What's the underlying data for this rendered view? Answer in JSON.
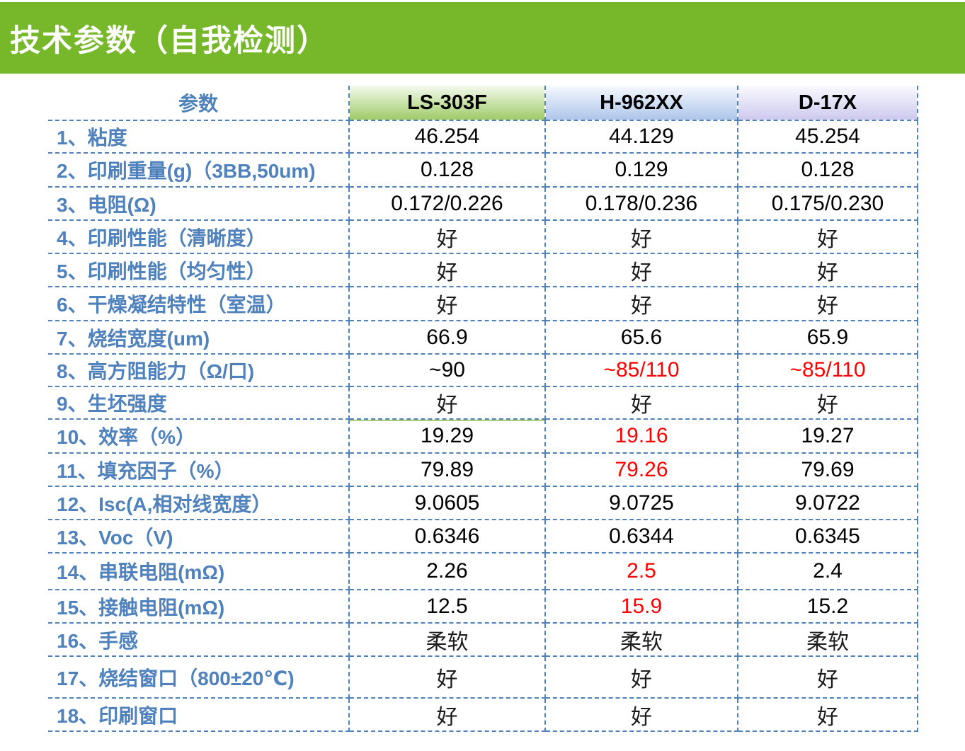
{
  "title": "技术参数（自我检测）",
  "colors": {
    "title_bar": "#77b82a",
    "label_blue": "#4f81bd",
    "border_blue": "#4f81bd",
    "alert_red": "#ff0000",
    "hdr_green_top": "#f4faee",
    "hdr_green_bottom": "#9fcb68",
    "hdr_blue_top": "#f6f9fe",
    "hdr_blue_bottom": "#aec6ea",
    "hdr_purple_top": "#fafaff",
    "hdr_purple_bottom": "#cdc9ee"
  },
  "table": {
    "param_header": "参数",
    "products": [
      "LS-303F",
      "H-962XX",
      "D-17X"
    ],
    "rows": [
      {
        "label": "1、粘度",
        "values": [
          "46.254",
          "44.129",
          "45.254"
        ],
        "red": [
          false,
          false,
          false
        ]
      },
      {
        "label": "2、印刷重量(g)（3BB,50um)",
        "values": [
          "0.128",
          "0.129",
          "0.128"
        ],
        "red": [
          false,
          false,
          false
        ]
      },
      {
        "label": "3、电阻(Ω)",
        "values": [
          "0.172/0.226",
          "0.178/0.236",
          "0.175/0.230"
        ],
        "red": [
          false,
          false,
          false
        ]
      },
      {
        "label": "4、印刷性能（清晰度）",
        "values": [
          "好",
          "好",
          "好"
        ],
        "red": [
          false,
          false,
          false
        ]
      },
      {
        "label": "5、印刷性能（均匀性）",
        "values": [
          "好",
          "好",
          "好"
        ],
        "red": [
          false,
          false,
          false
        ]
      },
      {
        "label": "6、干燥凝结特性（室温）",
        "values": [
          "好",
          "好",
          "好"
        ],
        "red": [
          false,
          false,
          false
        ]
      },
      {
        "label": "7、烧结宽度(um)",
        "values": [
          "66.9",
          "65.6",
          "65.9"
        ],
        "red": [
          false,
          false,
          false
        ]
      },
      {
        "label": "8、高方阻能力（Ω/口)",
        "values": [
          "~90",
          "~85/110",
          "~85/110"
        ],
        "red": [
          false,
          true,
          true
        ]
      },
      {
        "label": "9、生坯强度",
        "values": [
          "好",
          "好",
          "好"
        ],
        "red": [
          false,
          false,
          false
        ]
      },
      {
        "label": "10、效率（%）",
        "values": [
          "19.29",
          "19.16",
          "19.27"
        ],
        "red": [
          false,
          true,
          false
        ]
      },
      {
        "label": "11、填充因子（%）",
        "values": [
          "79.89",
          "79.26",
          "79.69"
        ],
        "red": [
          false,
          true,
          false
        ]
      },
      {
        "label": "12、Isc(A,相对线宽度）",
        "values": [
          "9.0605",
          "9.0725",
          "9.0722"
        ],
        "red": [
          false,
          false,
          false
        ]
      },
      {
        "label": "13、Voc（V)",
        "values": [
          "0.6346",
          "0.6344",
          "0.6345"
        ],
        "red": [
          false,
          false,
          false
        ]
      },
      {
        "label": "14、串联电阻(mΩ)",
        "values": [
          "2.26",
          "2.5",
          "2.4"
        ],
        "red": [
          false,
          true,
          false
        ]
      },
      {
        "label": "15、接触电阻(mΩ)",
        "values": [
          "12.5",
          "15.9",
          "15.2"
        ],
        "red": [
          false,
          true,
          false
        ]
      },
      {
        "label": "16、手感",
        "values": [
          "柔软",
          "柔软",
          "柔软"
        ],
        "red": [
          false,
          false,
          false
        ]
      },
      {
        "label": "17、烧结窗口（800±20℃)",
        "values": [
          "好",
          "好",
          "好"
        ],
        "red": [
          false,
          false,
          false
        ]
      },
      {
        "label": "18、印刷窗口",
        "values": [
          "好",
          "好",
          "好"
        ],
        "red": [
          false,
          false,
          false
        ]
      }
    ]
  }
}
